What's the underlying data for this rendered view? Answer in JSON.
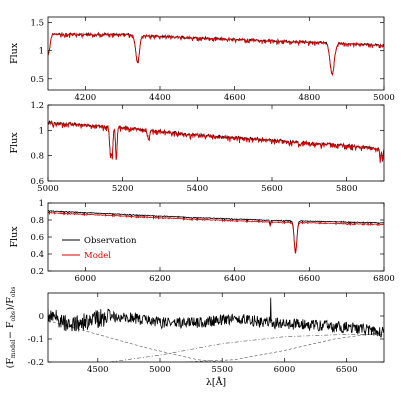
{
  "chart_data": [
    {
      "type": "line",
      "ylabel": "Flux",
      "xlim": [
        4100,
        5000
      ],
      "ylim": [
        0.3,
        1.6
      ],
      "x_ticks": [
        4200,
        4400,
        4600,
        4800,
        5000
      ],
      "y_ticks": [
        0.5,
        1,
        1.5
      ],
      "continuum": [
        [
          4100,
          1.31
        ],
        [
          4300,
          1.3
        ],
        [
          4500,
          1.24
        ],
        [
          4700,
          1.19
        ],
        [
          4900,
          1.14
        ],
        [
          5000,
          1.11
        ]
      ],
      "absorption_lines": [
        {
          "center": 4340,
          "depth": 0.48,
          "width": 7
        },
        {
          "center": 4861,
          "depth": 0.55,
          "width": 8
        },
        {
          "center": 4101,
          "depth": 0.35,
          "width": 6
        }
      ],
      "noise": 0.05,
      "series": [
        {
          "name": "Observation",
          "color": "#000000",
          "model_offset": 0
        },
        {
          "name": "Model",
          "color": "#dd0000",
          "model_offset": -0.005
        }
      ]
    },
    {
      "type": "line",
      "ylabel": "Flux",
      "xlim": [
        5000,
        5900
      ],
      "ylim": [
        0.6,
        1.2
      ],
      "x_ticks": [
        5000,
        5200,
        5400,
        5600,
        5800
      ],
      "y_ticks": [
        0.6,
        0.8,
        1,
        1.2
      ],
      "continuum": [
        [
          5000,
          1.07
        ],
        [
          5200,
          1.03
        ],
        [
          5400,
          0.97
        ],
        [
          5600,
          0.93
        ],
        [
          5800,
          0.89
        ],
        [
          5900,
          0.86
        ]
      ],
      "absorption_lines": [
        {
          "center": 5167,
          "depth": 0.2,
          "width": 3
        },
        {
          "center": 5172,
          "depth": 0.22,
          "width": 3
        },
        {
          "center": 5183,
          "depth": 0.24,
          "width": 3
        },
        {
          "center": 5270,
          "depth": 0.08,
          "width": 3
        },
        {
          "center": 5890,
          "depth": 0.1,
          "width": 2
        },
        {
          "center": 5896,
          "depth": 0.1,
          "width": 2
        }
      ],
      "noise": 0.03,
      "series": [
        {
          "name": "Observation",
          "color": "#000000",
          "model_offset": 0
        },
        {
          "name": "Model",
          "color": "#dd0000",
          "model_offset": -0.004
        }
      ]
    },
    {
      "type": "line",
      "ylabel": "Flux",
      "xlim": [
        5900,
        6800
      ],
      "ylim": [
        0.2,
        1.0
      ],
      "x_ticks": [
        6000,
        6200,
        6400,
        6600,
        6800
      ],
      "y_ticks": [
        0.2,
        0.4,
        0.6,
        0.8,
        1
      ],
      "continuum": [
        [
          5900,
          0.89
        ],
        [
          6100,
          0.85
        ],
        [
          6300,
          0.81
        ],
        [
          6500,
          0.78
        ],
        [
          6700,
          0.76
        ],
        [
          6800,
          0.75
        ]
      ],
      "absorption_lines": [
        {
          "center": 6563,
          "depth": 0.36,
          "width": 5
        },
        {
          "center": 6495,
          "depth": 0.05,
          "width": 2
        }
      ],
      "noise": 0.012,
      "series": [
        {
          "name": "Observation",
          "color": "#000000",
          "model_offset": 0.02
        },
        {
          "name": "Model",
          "color": "#dd0000",
          "model_offset": 0
        }
      ],
      "legend": {
        "position": "lower-left",
        "entries": [
          "Observation",
          "Model"
        ]
      }
    },
    {
      "type": "line",
      "ylabel": "(F_model − F_obs)/F_obs",
      "xlabel": "λ[Å]",
      "xlim": [
        4100,
        6800
      ],
      "ylim": [
        -0.2,
        0.1
      ],
      "x_ticks": [
        4500,
        5000,
        5500,
        6000,
        6500
      ],
      "y_ticks": [
        -0.2,
        -0.1,
        0
      ],
      "residual": [
        [
          4100,
          0.0
        ],
        [
          4300,
          -0.04
        ],
        [
          4500,
          -0.01
        ],
        [
          4700,
          0.0
        ],
        [
          5000,
          -0.03
        ],
        [
          5300,
          -0.03
        ],
        [
          5600,
          -0.01
        ],
        [
          5900,
          -0.03
        ],
        [
          6200,
          -0.04
        ],
        [
          6500,
          -0.05
        ],
        [
          6800,
          -0.07
        ]
      ],
      "noise": 0.025,
      "spikes": [
        {
          "x": 5890,
          "value": 0.08
        },
        {
          "x": 6563,
          "value": -0.04
        }
      ],
      "color": "#000000",
      "reference_curves": [
        {
          "style": "dashed",
          "points": [
            [
              4100,
              -0.02
            ],
            [
              4500,
              -0.08
            ],
            [
              4900,
              -0.14
            ],
            [
              5300,
              -0.19
            ],
            [
              5500,
              -0.2
            ]
          ]
        },
        {
          "style": "dash-dot",
          "points": [
            [
              4600,
              -0.2
            ],
            [
              5000,
              -0.17
            ],
            [
              5500,
              -0.12
            ],
            [
              6000,
              -0.09
            ],
            [
              6500,
              -0.08
            ],
            [
              6800,
              -0.08
            ]
          ]
        },
        {
          "style": "dashed",
          "points": [
            [
              5200,
              -0.2
            ],
            [
              5600,
              -0.19
            ],
            [
              6000,
              -0.15
            ],
            [
              6400,
              -0.1
            ],
            [
              6800,
              -0.07
            ]
          ]
        }
      ]
    }
  ]
}
